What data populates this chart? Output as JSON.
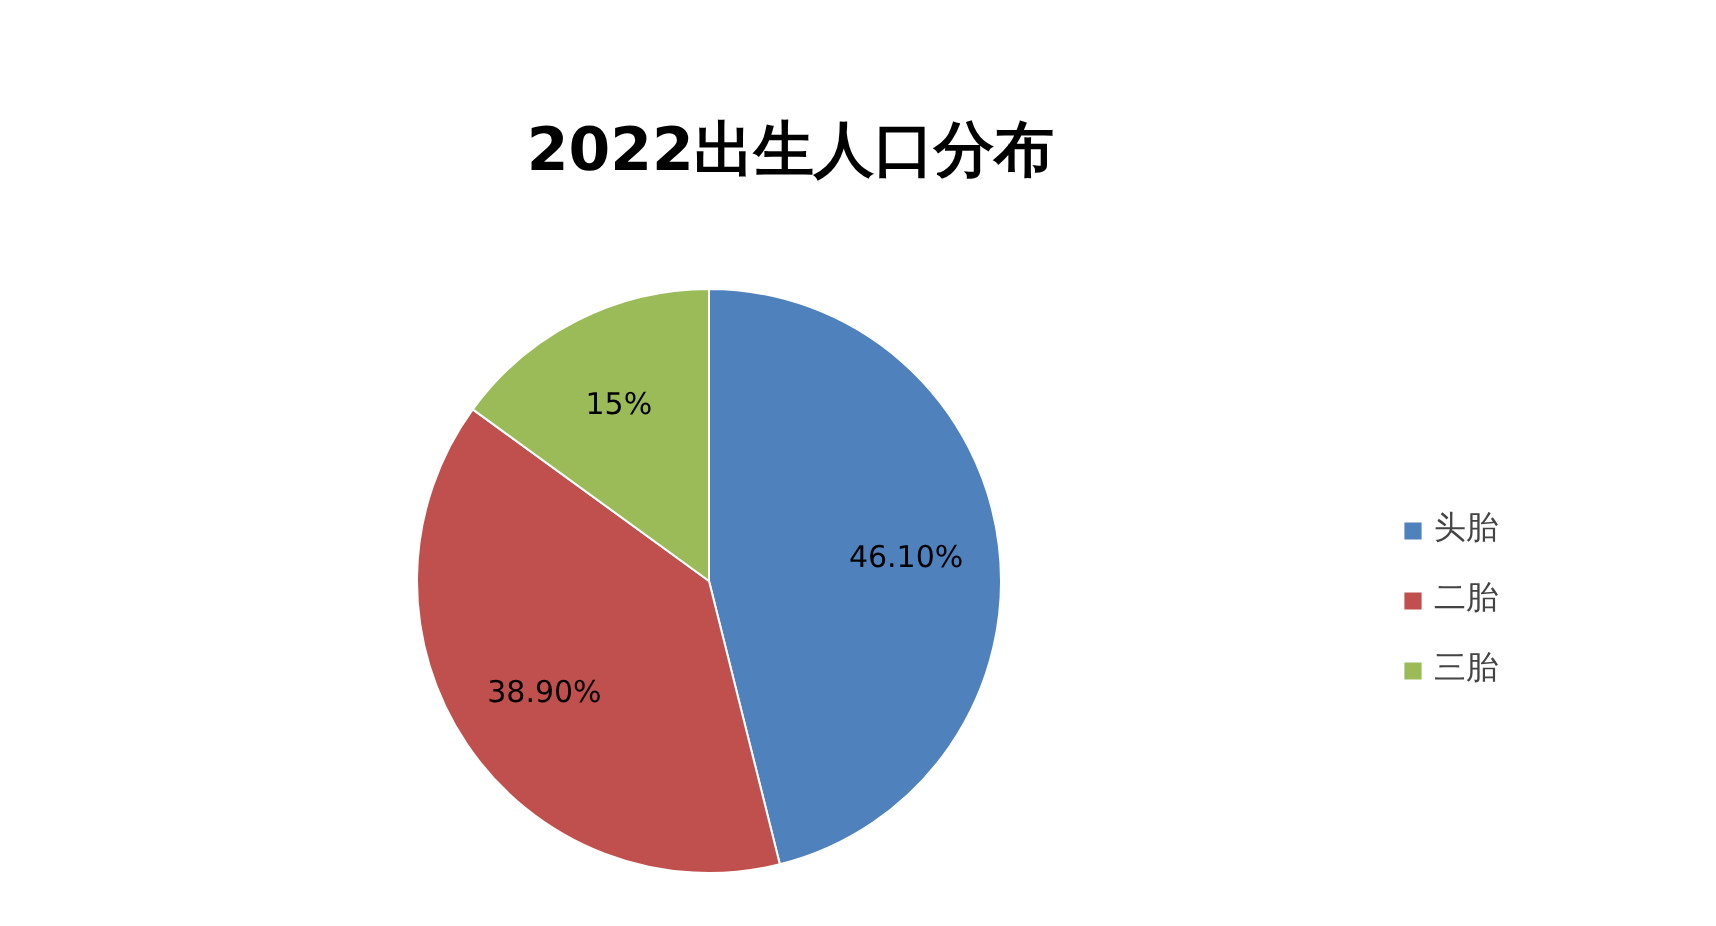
{
  "chart_data": {
    "type": "pie",
    "title": "2022出生人口分布",
    "categories": [
      "头胎",
      "二胎",
      "三胎"
    ],
    "values": [
      46.1,
      38.9,
      15
    ],
    "value_labels": [
      "46.10%",
      "38.90%",
      "15%"
    ],
    "colors": [
      "#4f81bd",
      "#c0504d",
      "#9bbb59"
    ],
    "legend": "right"
  }
}
